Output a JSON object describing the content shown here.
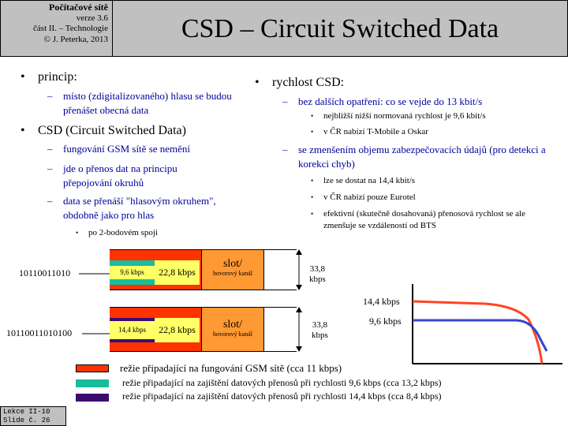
{
  "header": {
    "course_title": "Počítačové sítě",
    "version": "verze 3.6",
    "part": "část  II. –  Technologie",
    "copyright": "© J. Peterka, 2013",
    "slide_title": "CSD – Circuit Switched Data"
  },
  "left": {
    "b1": "princip:",
    "b1_s1": "místo  (zdigitalizovaného)  hlasu se budou přenášet obecná data",
    "b2": "CSD (Circuit Switched Data)",
    "b2_s1": "fungování  GSM sítě  se nemění",
    "b2_s2": "jde o přenos dat na principu přepojování  okruhů",
    "b2_s3": "data se přenáší  \"hlasovým okruhem\",  obdobně jako pro hlas",
    "b2_s3_a": "po 2-bodovém spoji"
  },
  "right": {
    "b1": "rychlost CSD:",
    "s1": "bez dalších  opatření:  co se vejde do 13 kbit/s",
    "s1_a": "nejbližší  nižší  normovaná rychlost je 9,6 kbit/s",
    "s1_b": "v  ČR nabízí T-Mobile a Oskar",
    "s2": "se zmenšením  objemu zabezpečovacích údajů (pro detekci a korekci chyb)",
    "s2_a": "lze se dostat na 14,4 kbit/s",
    "s2_b": "v  ČR nabízí pouze Eurotel",
    "s2_c": "efektivní (skutečně dosahovaná) přenosová rychlost se ale zmenšuje se vzdáleností od BTS"
  },
  "diagram": {
    "bits1": "10110011010",
    "bits2": "10110011010100",
    "row1_rate": "9,6 kbps",
    "row2_rate": "14,4 kbps",
    "gross": "22,8 kbps",
    "slot": "slot/",
    "slot_sub": "hovorový kanál",
    "dim_num": "33,8",
    "dim_unit": "kbps"
  },
  "graph": {
    "label_hi": "14,4 kbps",
    "label_lo": "9,6 kbps"
  },
  "legend": {
    "red": "režie připadající  na fungování  GSM sítě  (cca 11 kbps)",
    "teal": "režie připadající na zajištění  datových přenosů při rychlosti 9,6 kbps (cca 13,2 kbps)",
    "purple": "režie připadající na zajištění  datových přenosů při rychlosti 14,4 kbps (cca 8,4 kbps)"
  },
  "colors": {
    "red": "#ff3300",
    "teal": "#1abc9c",
    "purple": "#3d0a6e",
    "yellow": "#ffff66",
    "orange": "#ff9933",
    "blue_text": "#00009c"
  },
  "footer": {
    "line1": "Lekce II-10",
    "line2": "Slide č. 26"
  }
}
